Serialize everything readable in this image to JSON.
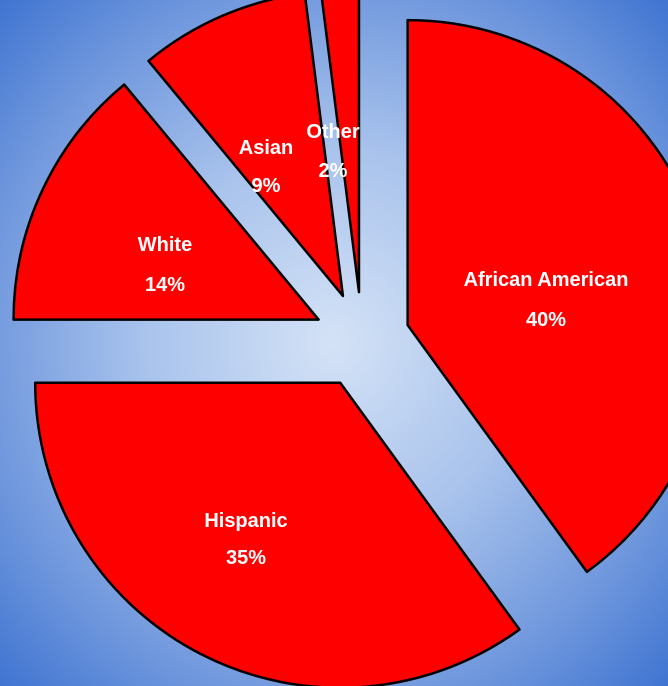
{
  "chart_data": {
    "type": "pie",
    "exploded": true,
    "categories": [
      "African American",
      "Hispanic",
      "White",
      "Asian",
      "Other"
    ],
    "values": [
      40,
      35,
      14,
      9,
      2
    ],
    "value_labels": [
      "40%",
      "35%",
      "14%",
      "9%",
      "2%"
    ],
    "colors": {
      "slice_fill": "#ff0000",
      "slice_stroke": "#000000",
      "label_text": "#ffffff"
    },
    "title": "",
    "legend": "none"
  }
}
